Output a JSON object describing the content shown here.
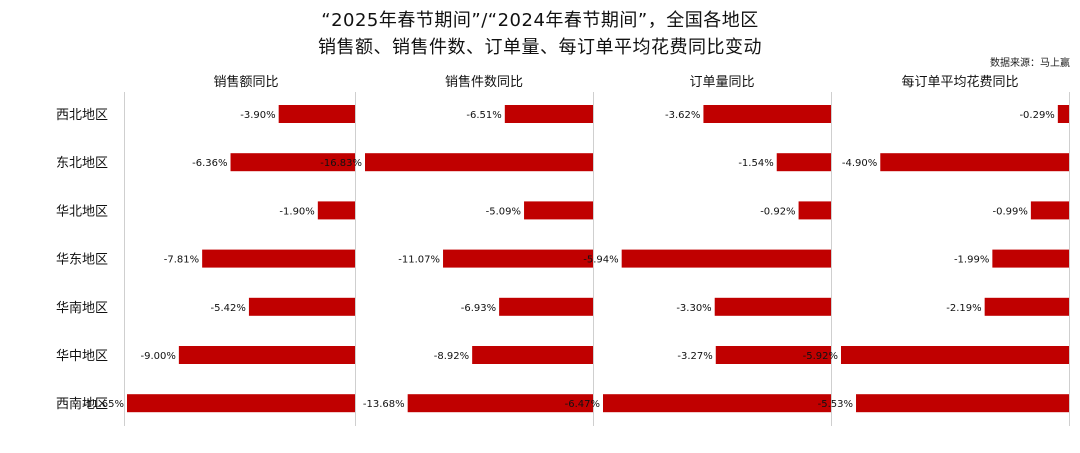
{
  "title_line1": "“2025年春节期间”/“2024年春节期间”，全国各地区",
  "title_line2": "销售额、销售件数、订单量、每订单平均花费同比变动",
  "source": "数据来源：马上赢",
  "chart_data": {
    "type": "bar",
    "orientation": "horizontal",
    "categories": [
      "西北地区",
      "东北地区",
      "华北地区",
      "华东地区",
      "华南地区",
      "华中地区",
      "西南地区"
    ],
    "series": [
      {
        "name": "销售额同比",
        "values": [
          -3.9,
          -6.36,
          -1.9,
          -7.81,
          -5.42,
          -9.0,
          -11.65
        ],
        "labels": [
          "-3.90%",
          "-6.36%",
          "-1.90%",
          "-7.81%",
          "-5.42%",
          "-9.00%",
          "-11.65%"
        ]
      },
      {
        "name": "销售件数同比",
        "values": [
          -6.51,
          -16.83,
          -5.09,
          -11.07,
          -6.93,
          -8.92,
          -13.68
        ],
        "labels": [
          "-6.51%",
          "-16.83%",
          "-5.09%",
          "-11.07%",
          "-6.93%",
          "-8.92%",
          "-13.68%"
        ]
      },
      {
        "name": "订单量同比",
        "values": [
          -3.62,
          -1.54,
          -0.92,
          -5.94,
          -3.3,
          -3.27,
          -6.47
        ],
        "labels": [
          "-3.62%",
          "-1.54%",
          "-0.92%",
          "-5.94%",
          "-3.30%",
          "-3.27%",
          "-6.47%"
        ]
      },
      {
        "name": "每订单平均花费同比",
        "values": [
          -0.29,
          -4.9,
          -0.99,
          -1.99,
          -2.19,
          -5.92,
          -5.53
        ],
        "labels": [
          "-0.29%",
          "-4.90%",
          "-0.99%",
          "-1.99%",
          "-2.19%",
          "-5.92%",
          "-5.53%"
        ]
      }
    ],
    "bar_color": "#c00000",
    "grid": false,
    "legend": "none"
  }
}
